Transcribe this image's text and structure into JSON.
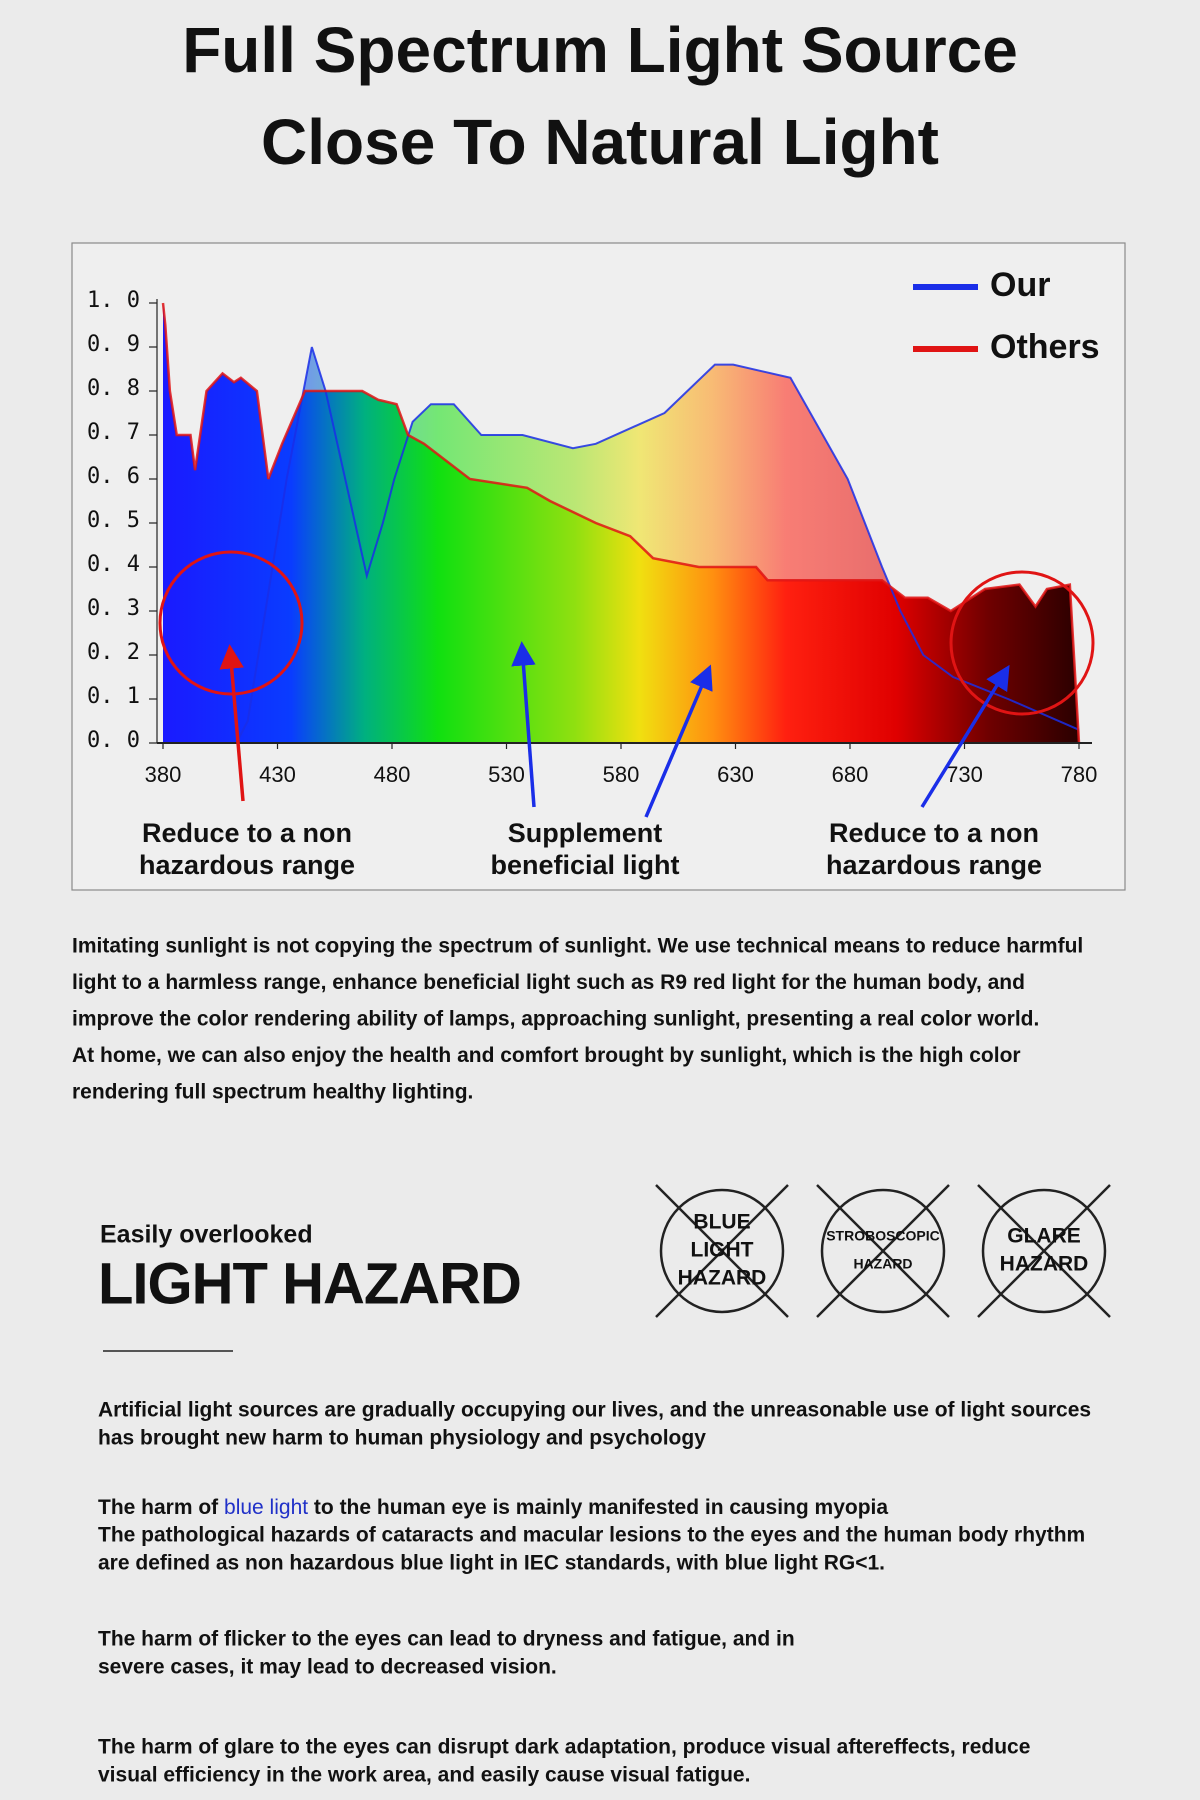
{
  "header": {
    "title_lines": [
      "Full Spectrum Light Source",
      "Close To Natural Light"
    ]
  },
  "chart_data": {
    "type": "area",
    "xlim": [
      380,
      780
    ],
    "ylim": [
      0,
      1
    ],
    "xticks": [
      380,
      430,
      480,
      530,
      580,
      630,
      680,
      730,
      780
    ],
    "yticks": [
      {
        "value": 0,
        "label": "0. 0"
      },
      {
        "value": 0.1,
        "label": "0. 1"
      },
      {
        "value": 0.2,
        "label": "0. 2"
      },
      {
        "value": 0.3,
        "label": "0. 3"
      },
      {
        "value": 0.4,
        "label": "0. 4"
      },
      {
        "value": 0.5,
        "label": "0. 5"
      },
      {
        "value": 0.6,
        "label": "0. 6"
      },
      {
        "value": 0.7,
        "label": "0. 7"
      },
      {
        "value": 0.8,
        "label": "0. 8"
      },
      {
        "value": 0.9,
        "label": "0. 9"
      },
      {
        "value": 1,
        "label": "1. 0"
      }
    ],
    "legend": "top-right",
    "series": [
      {
        "name": "Our",
        "color": "#1a2ee8",
        "x": [
          380,
          412,
          417,
          434,
          445,
          451,
          469,
          476,
          481,
          489,
          497,
          507,
          519,
          537,
          559,
          569,
          599,
          609,
          621,
          629,
          654,
          679,
          694,
          702,
          712,
          725,
          749,
          780
        ],
        "values": [
          0,
          0,
          0.05,
          0.6,
          0.9,
          0.8,
          0.38,
          0.5,
          0.6,
          0.73,
          0.77,
          0.77,
          0.7,
          0.7,
          0.67,
          0.68,
          0.75,
          0.8,
          0.86,
          0.86,
          0.83,
          0.6,
          0.4,
          0.3,
          0.2,
          0.15,
          0.1,
          0.03
        ]
      },
      {
        "name": "Others",
        "color": "#e01414",
        "x": [
          380,
          381,
          383,
          386,
          392,
          394,
          399,
          406,
          411,
          414,
          421,
          426,
          432,
          442,
          467,
          474,
          482,
          487,
          494,
          514,
          539,
          549,
          569,
          584,
          594,
          614,
          639,
          644,
          694,
          704,
          714,
          724,
          739,
          754,
          761,
          766,
          776,
          780
        ],
        "values": [
          1.0,
          0.95,
          0.8,
          0.7,
          0.7,
          0.62,
          0.8,
          0.84,
          0.82,
          0.83,
          0.8,
          0.6,
          0.68,
          0.8,
          0.8,
          0.78,
          0.77,
          0.7,
          0.68,
          0.6,
          0.58,
          0.55,
          0.5,
          0.47,
          0.42,
          0.4,
          0.4,
          0.37,
          0.37,
          0.33,
          0.33,
          0.3,
          0.35,
          0.36,
          0.31,
          0.35,
          0.36,
          0
        ]
      }
    ],
    "annotations": [
      {
        "lines": [
          "Reduce to a non",
          "hazardous range"
        ],
        "color": "#e01414"
      },
      {
        "lines": [
          "Supplement",
          "beneficial light"
        ],
        "color": "#e01414"
      },
      {
        "lines": [
          "Reduce to a non",
          "hazardous range"
        ],
        "color": "#e01414"
      }
    ]
  },
  "intro": {
    "lines": [
      "Imitating sunlight is not copying the spectrum of sunlight. We use technical means to reduce harmful",
      "light to a harmless range, enhance beneficial light such as R9 red light for the human body, and",
      "improve the color rendering ability of lamps, approaching sunlight, presenting a real color world.",
      "At home, we can also enjoy the health and comfort brought by sunlight, which is the high color",
      "rendering full spectrum healthy lighting."
    ]
  },
  "hazard": {
    "kicker": "Easily overlooked",
    "title": "LIGHT HAZARD",
    "icons": [
      {
        "lines": [
          "BLUE",
          "LIGHT",
          "HAZARD"
        ]
      },
      {
        "lines": [
          "STROBOSCOPIC",
          "HAZARD"
        ]
      },
      {
        "lines": [
          "GLARE",
          "HAZARD"
        ]
      }
    ],
    "paragraphs": [
      {
        "lines": [
          "Artificial light sources are gradually occupying our lives, and the unreasonable use of light sources",
          "has brought new harm to human physiology and psychology"
        ]
      },
      {
        "lines": [
          {
            "before": "The harm of ",
            "highlight": "blue light",
            "after": " to the human eye is mainly manifested in causing myopia"
          },
          "The pathological hazards of cataracts and macular lesions to the eyes and the human body rhythm",
          "are defined as non hazardous blue light in IEC standards, with blue light RG<1."
        ]
      },
      {
        "lines": [
          "The harm of flicker to the eyes can lead to dryness and fatigue, and in",
          "severe cases, it may lead to decreased vision."
        ]
      },
      {
        "lines": [
          "The harm of glare to the eyes can disrupt dark adaptation, produce visual aftereffects, reduce",
          "visual efficiency in the work area, and easily cause visual fatigue."
        ]
      }
    ]
  }
}
